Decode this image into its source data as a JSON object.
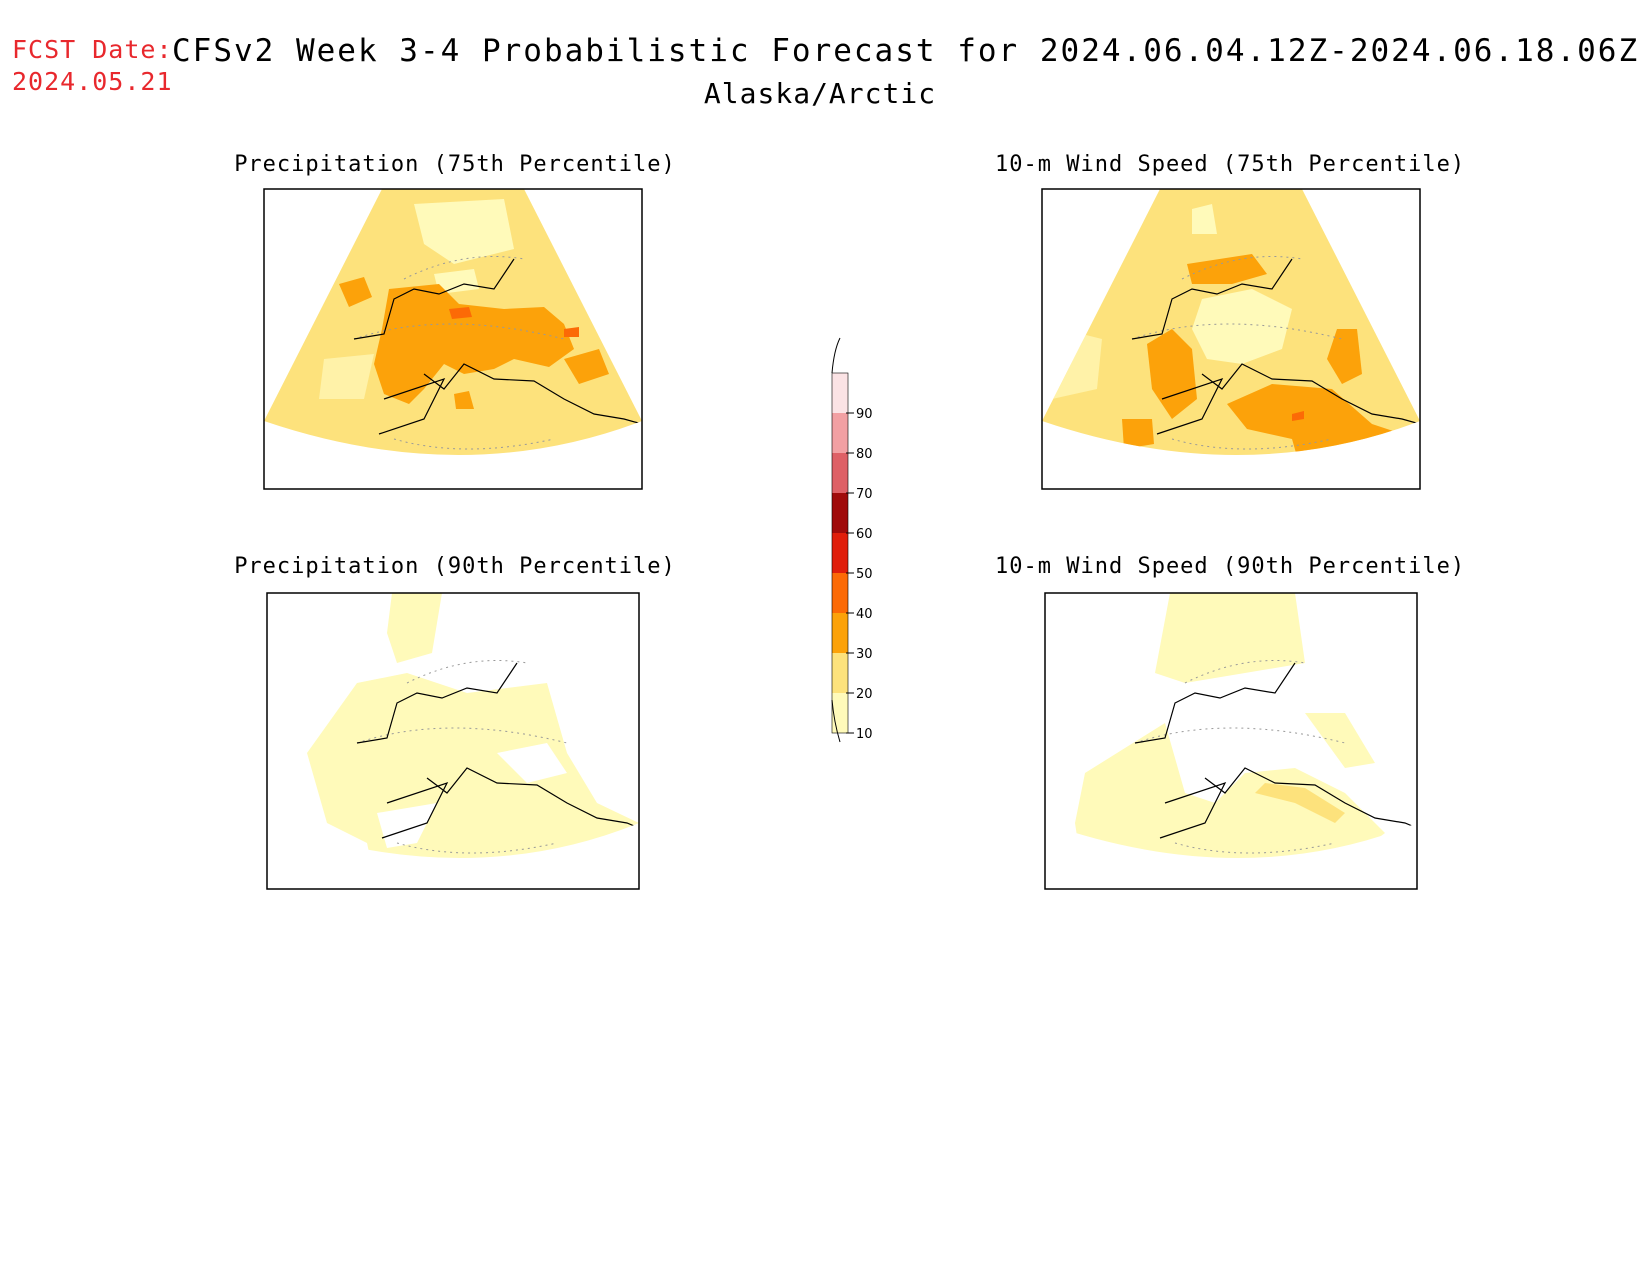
{
  "header": {
    "fcst_label": "FCST Date:",
    "fcst_date": "2024.05.21",
    "title": "CFSv2 Week 3-4 Probabilistic Forecast for 2024.06.04.12Z-2024.06.18.06Z",
    "region": "Alaska/Arctic"
  },
  "panels": [
    {
      "title": "Precipitation (75th Percentile)"
    },
    {
      "title": "10-m Wind Speed (75th Percentile)"
    },
    {
      "title": "Precipitation (90th Percentile)"
    },
    {
      "title": "10-m Wind Speed (90th Percentile)"
    }
  ],
  "legend": {
    "tick_labels": [
      "90",
      "80",
      "70",
      "60",
      "50",
      "40",
      "30",
      "20",
      "10"
    ],
    "colors": {
      "10-20": "#fffaba",
      "20-30": "#fde27c",
      "30-40": "#fca20a",
      "40-50": "#fc6a06",
      "50-60": "#e01e0b",
      "60-70": "#a00b0b",
      "70-80": "#de6066",
      "80-90": "#f2a0a3",
      "90-100": "#fbe3e5"
    }
  },
  "colors": {
    "fcst_text": "#e8282d",
    "map_base": "#fde27c",
    "map_light": "#fffaba",
    "map_orange": "#fca20a",
    "map_red_orange": "#fc6a06"
  }
}
